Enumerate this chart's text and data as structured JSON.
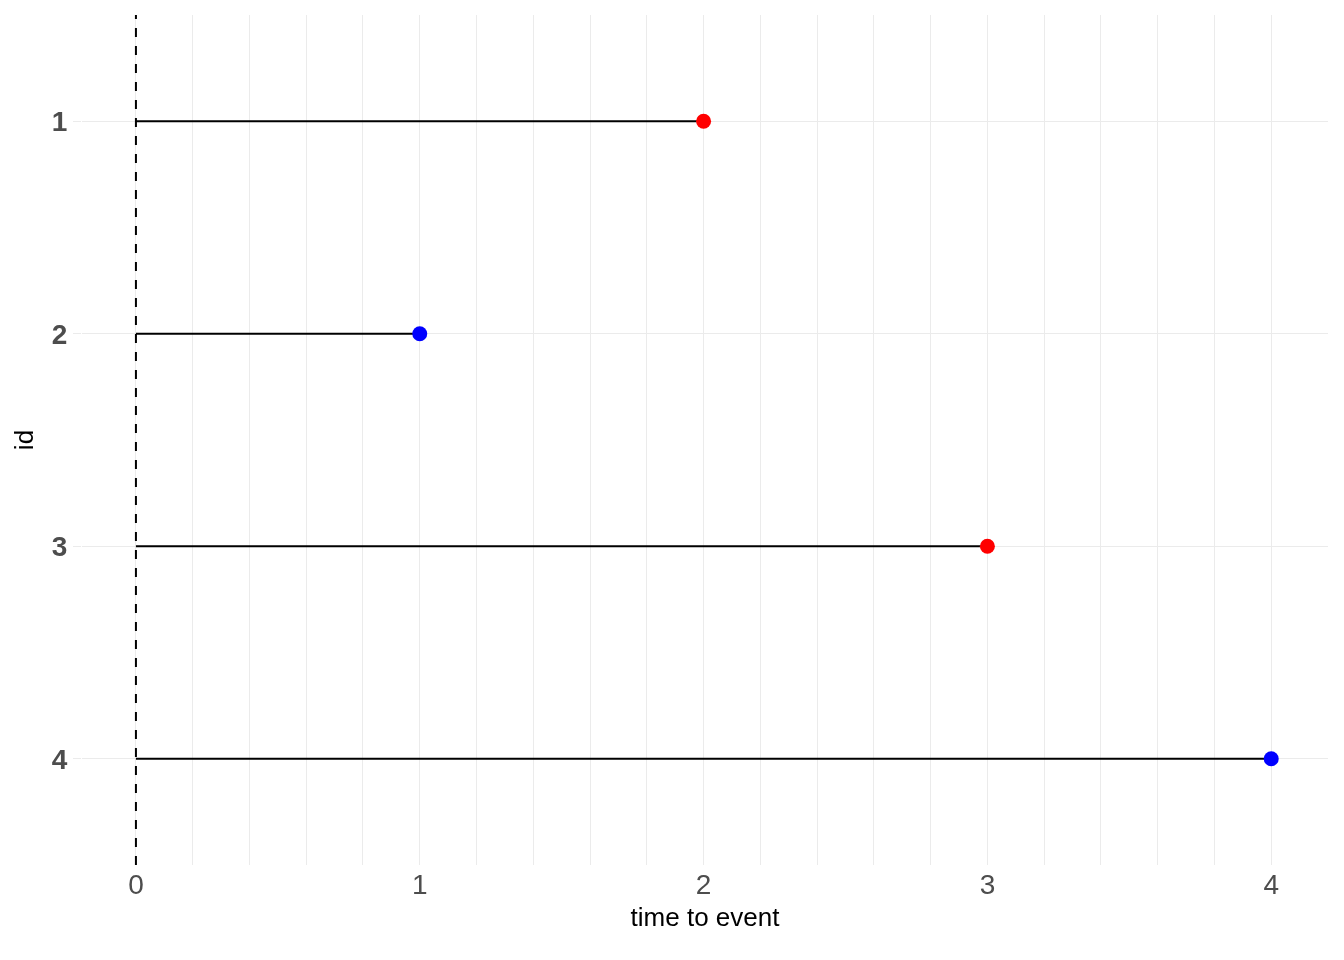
{
  "chart_data": {
    "type": "lollipop",
    "orientation": "horizontal",
    "xlabel": "time to event",
    "ylabel": "id",
    "categories": [
      "1",
      "2",
      "3",
      "4"
    ],
    "values": [
      2,
      1,
      3,
      4
    ],
    "colors": [
      "#ff0000",
      "#0000ff",
      "#ff0000",
      "#0000ff"
    ],
    "xlim": [
      -0.19,
      4.2
    ],
    "xticks": [
      0,
      1,
      2,
      3,
      4
    ],
    "grid": true,
    "marker": "circle",
    "ref_lines": [
      {
        "axis": "x",
        "value": 0,
        "color": "#000000",
        "line_style": "dashed"
      }
    ]
  }
}
